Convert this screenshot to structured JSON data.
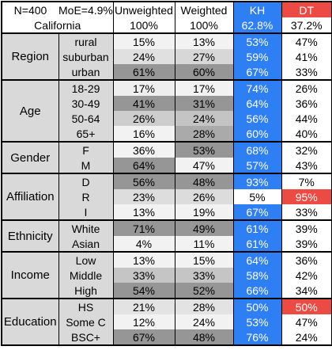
{
  "chart_data": {
    "type": "table",
    "header": {
      "n": "N=400",
      "moe": "MoE=4.9%",
      "columns": [
        "Unweighted",
        "Weighted",
        "KH",
        "DT"
      ]
    },
    "total": {
      "label": "California",
      "values": [
        "100%",
        "100%",
        "62.8%",
        "37.2%"
      ]
    },
    "groups": [
      {
        "name": "Region",
        "rows": [
          {
            "label": "rural",
            "values": [
              "15%",
              "13%",
              "53%",
              "47%"
            ]
          },
          {
            "label": "suburban",
            "values": [
              "24%",
              "27%",
              "59%",
              "41%"
            ]
          },
          {
            "label": "urban",
            "values": [
              "61%",
              "60%",
              "67%",
              "33%"
            ]
          }
        ]
      },
      {
        "name": "Age",
        "rows": [
          {
            "label": "18-29",
            "values": [
              "17%",
              "17%",
              "74%",
              "26%"
            ]
          },
          {
            "label": "30-49",
            "values": [
              "41%",
              "31%",
              "64%",
              "36%"
            ]
          },
          {
            "label": "50-64",
            "values": [
              "26%",
              "24%",
              "56%",
              "44%"
            ]
          },
          {
            "label": "65+",
            "values": [
              "16%",
              "28%",
              "60%",
              "40%"
            ]
          }
        ]
      },
      {
        "name": "Gender",
        "rows": [
          {
            "label": "F",
            "values": [
              "36%",
              "53%",
              "68%",
              "32%"
            ]
          },
          {
            "label": "M",
            "values": [
              "64%",
              "47%",
              "57%",
              "43%"
            ]
          }
        ]
      },
      {
        "name": "Affiliation",
        "rows": [
          {
            "label": "D",
            "values": [
              "56%",
              "48%",
              "93%",
              "7%"
            ]
          },
          {
            "label": "R",
            "values": [
              "23%",
              "26%",
              "5%",
              "95%"
            ]
          },
          {
            "label": "I",
            "values": [
              "13%",
              "19%",
              "67%",
              "33%"
            ]
          }
        ]
      },
      {
        "name": "Ethnicity",
        "rows": [
          {
            "label": "White",
            "values": [
              "71%",
              "49%",
              "61%",
              "39%"
            ]
          },
          {
            "label": "Asian",
            "values": [
              "4%",
              "11%",
              "61%",
              "39%"
            ]
          }
        ]
      },
      {
        "name": "Income",
        "rows": [
          {
            "label": "Low",
            "values": [
              "13%",
              "15%",
              "64%",
              "36%"
            ]
          },
          {
            "label": "Middle",
            "values": [
              "33%",
              "33%",
              "58%",
              "42%"
            ]
          },
          {
            "label": "High",
            "values": [
              "54%",
              "52%",
              "66%",
              "34%"
            ]
          }
        ]
      },
      {
        "name": "Education",
        "rows": [
          {
            "label": "HS",
            "values": [
              "21%",
              "28%",
              "50%",
              "50%"
            ]
          },
          {
            "label": "Some C",
            "values": [
              "12%",
              "24%",
              "53%",
              "47%"
            ]
          },
          {
            "label": "BSC+",
            "values": [
              "67%",
              "48%",
              "76%",
              "24%"
            ]
          }
        ]
      }
    ],
    "colors": {
      "kh": "#2f7ff4",
      "dt": "#ec4b43",
      "label_bg": "#d9d9d9",
      "white": "#ffffff"
    }
  }
}
